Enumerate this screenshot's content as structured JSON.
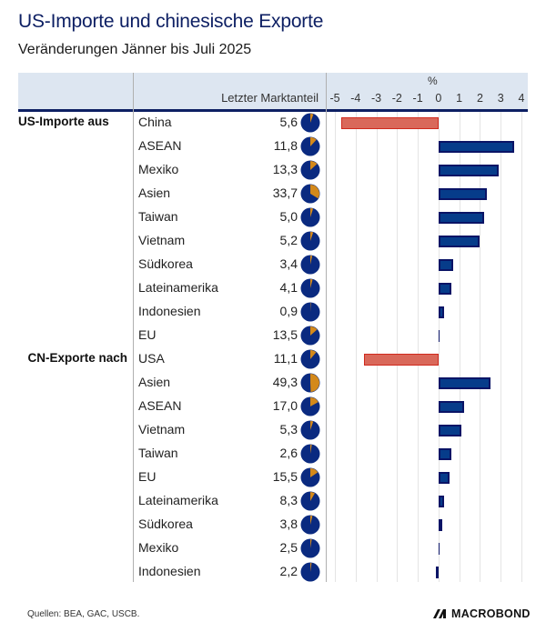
{
  "title": "US-Importe und chinesische Exporte",
  "subtitle": "Veränderungen Jänner bis Juli 2025",
  "header": {
    "share_column": "Letzter Marktanteil",
    "unit": "%"
  },
  "source": "Quellen: BEA, GAC, USCB.",
  "logo": "MACROBOND",
  "colors": {
    "title": "#0d1f63",
    "bar_positive": "#063c8a",
    "bar_negative": "#d9685a",
    "pie_base": "#0a2a80",
    "pie_share": "#d4891a",
    "header_band": "#dde6f1"
  },
  "chart_data": {
    "type": "bar",
    "orientation": "horizontal",
    "title": "US-Importe und chinesische Exporte",
    "subtitle": "Veränderungen Jänner bis Juli 2025",
    "xlabel": "%",
    "xlim": [
      -5,
      4
    ],
    "xticks": [
      "-5",
      "-4",
      "-3",
      "-2",
      "-1",
      "0",
      "1",
      "2",
      "3",
      "4"
    ],
    "grid": true,
    "groups": [
      {
        "label": "US-Importe aus",
        "rows": [
          {
            "name": "China",
            "share": "5,6",
            "share_value": 5.6,
            "change": -4.7
          },
          {
            "name": "ASEAN",
            "share": "11,8",
            "share_value": 11.8,
            "change": 3.65
          },
          {
            "name": "Mexiko",
            "share": "13,3",
            "share_value": 13.3,
            "change": 2.9
          },
          {
            "name": "Asien",
            "share": "33,7",
            "share_value": 33.7,
            "change": 2.35
          },
          {
            "name": "Taiwan",
            "share": "5,0",
            "share_value": 5.0,
            "change": 2.2
          },
          {
            "name": "Vietnam",
            "share": "5,2",
            "share_value": 5.2,
            "change": 2.0
          },
          {
            "name": "Südkorea",
            "share": "3,4",
            "share_value": 3.4,
            "change": 0.7
          },
          {
            "name": "Lateinamerika",
            "share": "4,1",
            "share_value": 4.1,
            "change": 0.6
          },
          {
            "name": "Indonesien",
            "share": "0,9",
            "share_value": 0.9,
            "change": 0.25
          },
          {
            "name": "EU",
            "share": "13,5",
            "share_value": 13.5,
            "change": 0.05
          }
        ]
      },
      {
        "label": "CN-Exporte nach",
        "rows": [
          {
            "name": "USA",
            "share": "11,1",
            "share_value": 11.1,
            "change": -3.6
          },
          {
            "name": "Asien",
            "share": "49,3",
            "share_value": 49.3,
            "change": 2.5
          },
          {
            "name": "ASEAN",
            "share": "17,0",
            "share_value": 17.0,
            "change": 1.25
          },
          {
            "name": "Vietnam",
            "share": "5,3",
            "share_value": 5.3,
            "change": 1.1
          },
          {
            "name": "Taiwan",
            "share": "2,6",
            "share_value": 2.6,
            "change": 0.6
          },
          {
            "name": "EU",
            "share": "15,5",
            "share_value": 15.5,
            "change": 0.55
          },
          {
            "name": "Lateinamerika",
            "share": "8,3",
            "share_value": 8.3,
            "change": 0.25
          },
          {
            "name": "Südkorea",
            "share": "3,8",
            "share_value": 3.8,
            "change": 0.2
          },
          {
            "name": "Mexiko",
            "share": "2,5",
            "share_value": 2.5,
            "change": 0.02
          },
          {
            "name": "Indonesien",
            "share": "2,2",
            "share_value": 2.2,
            "change": -0.12
          }
        ]
      }
    ]
  }
}
